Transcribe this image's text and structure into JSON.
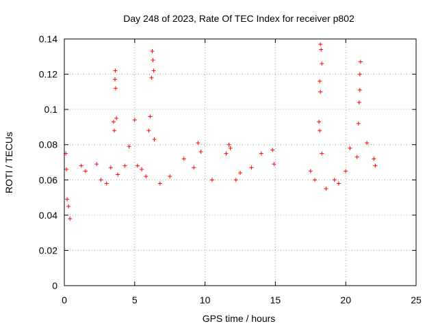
{
  "chart_data": {
    "type": "scatter",
    "title": "Day 248 of 2023, Rate Of TEC Index for receiver p802",
    "xlabel": "GPS time / hours",
    "ylabel": "ROTI / TECUs",
    "xlim": [
      0,
      25
    ],
    "ylim": [
      0,
      0.14
    ],
    "x_ticks": [
      "0",
      "5",
      "10",
      "15",
      "20",
      "25"
    ],
    "y_ticks": [
      "0",
      "0.02",
      "0.04",
      "0.06",
      "0.08",
      "0.1",
      "0.12",
      "0.14"
    ],
    "grid": true,
    "marker": "+",
    "color": "#ff0000",
    "series": [
      {
        "points": [
          [
            0.1,
            0.075
          ],
          [
            0.15,
            0.066
          ],
          [
            0.2,
            0.049
          ],
          [
            0.3,
            0.045
          ],
          [
            0.4,
            0.038
          ],
          [
            1.2,
            0.068
          ],
          [
            1.5,
            0.065
          ],
          [
            2.3,
            0.069
          ],
          [
            2.6,
            0.06
          ],
          [
            3.0,
            0.058
          ],
          [
            3.3,
            0.067
          ],
          [
            3.5,
            0.093
          ],
          [
            3.55,
            0.088
          ],
          [
            3.6,
            0.117
          ],
          [
            3.62,
            0.122
          ],
          [
            3.65,
            0.112
          ],
          [
            3.7,
            0.095
          ],
          [
            3.8,
            0.063
          ],
          [
            4.3,
            0.068
          ],
          [
            4.6,
            0.079
          ],
          [
            5.0,
            0.094
          ],
          [
            5.2,
            0.068
          ],
          [
            5.5,
            0.066
          ],
          [
            5.8,
            0.062
          ],
          [
            6.0,
            0.088
          ],
          [
            6.1,
            0.096
          ],
          [
            6.2,
            0.118
          ],
          [
            6.25,
            0.133
          ],
          [
            6.3,
            0.128
          ],
          [
            6.35,
            0.122
          ],
          [
            6.4,
            0.083
          ],
          [
            6.8,
            0.058
          ],
          [
            7.5,
            0.062
          ],
          [
            8.5,
            0.072
          ],
          [
            9.2,
            0.067
          ],
          [
            9.5,
            0.081
          ],
          [
            9.7,
            0.076
          ],
          [
            10.5,
            0.06
          ],
          [
            11.5,
            0.075
          ],
          [
            11.7,
            0.08
          ],
          [
            11.8,
            0.078
          ],
          [
            12.2,
            0.06
          ],
          [
            12.5,
            0.064
          ],
          [
            13.3,
            0.067
          ],
          [
            14.0,
            0.075
          ],
          [
            14.8,
            0.077
          ],
          [
            14.9,
            0.069
          ],
          [
            17.5,
            0.065
          ],
          [
            17.8,
            0.06
          ],
          [
            18.2,
            0.137
          ],
          [
            18.25,
            0.134
          ],
          [
            18.3,
            0.126
          ],
          [
            18.15,
            0.116
          ],
          [
            18.2,
            0.11
          ],
          [
            18.1,
            0.093
          ],
          [
            18.15,
            0.088
          ],
          [
            18.3,
            0.075
          ],
          [
            18.6,
            0.055
          ],
          [
            19.2,
            0.06
          ],
          [
            19.5,
            0.058
          ],
          [
            20.0,
            0.065
          ],
          [
            20.3,
            0.078
          ],
          [
            20.8,
            0.073
          ],
          [
            20.9,
            0.092
          ],
          [
            20.95,
            0.104
          ],
          [
            21.0,
            0.111
          ],
          [
            21.05,
            0.127
          ],
          [
            21.0,
            0.12
          ],
          [
            21.5,
            0.081
          ],
          [
            22.0,
            0.072
          ],
          [
            22.1,
            0.068
          ]
        ]
      }
    ]
  }
}
